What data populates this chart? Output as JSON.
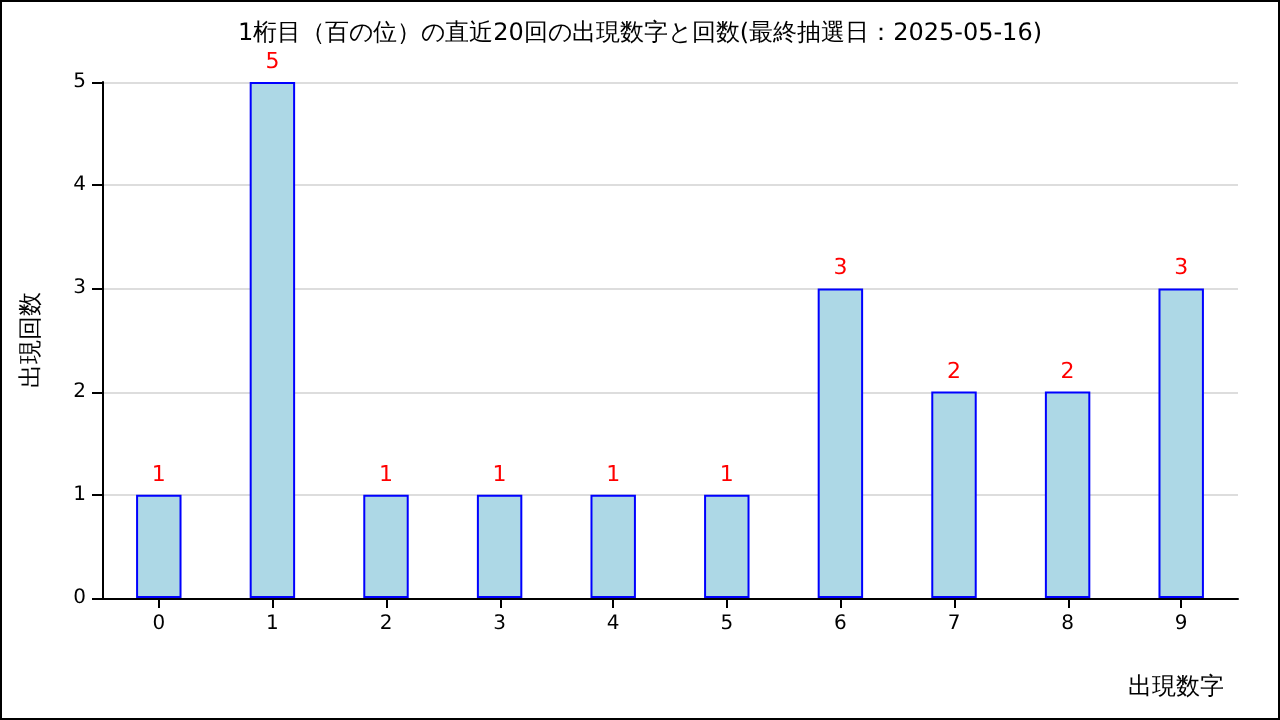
{
  "chart_data": {
    "type": "bar",
    "title": "1桁目（百の位）の直近20回の出現数字と回数(最終抽選日：2025-05-16)",
    "categories": [
      "0",
      "1",
      "2",
      "3",
      "4",
      "5",
      "6",
      "7",
      "8",
      "9"
    ],
    "values": [
      1,
      5,
      1,
      1,
      1,
      1,
      3,
      2,
      2,
      3
    ],
    "color": "#add8e6",
    "xlabel": "出現数字",
    "ylabel": "出現回数",
    "ylim": [
      0,
      5
    ],
    "yticks": [
      0,
      1,
      2,
      3,
      4,
      5
    ],
    "grid": "y",
    "data_labels": true
  }
}
